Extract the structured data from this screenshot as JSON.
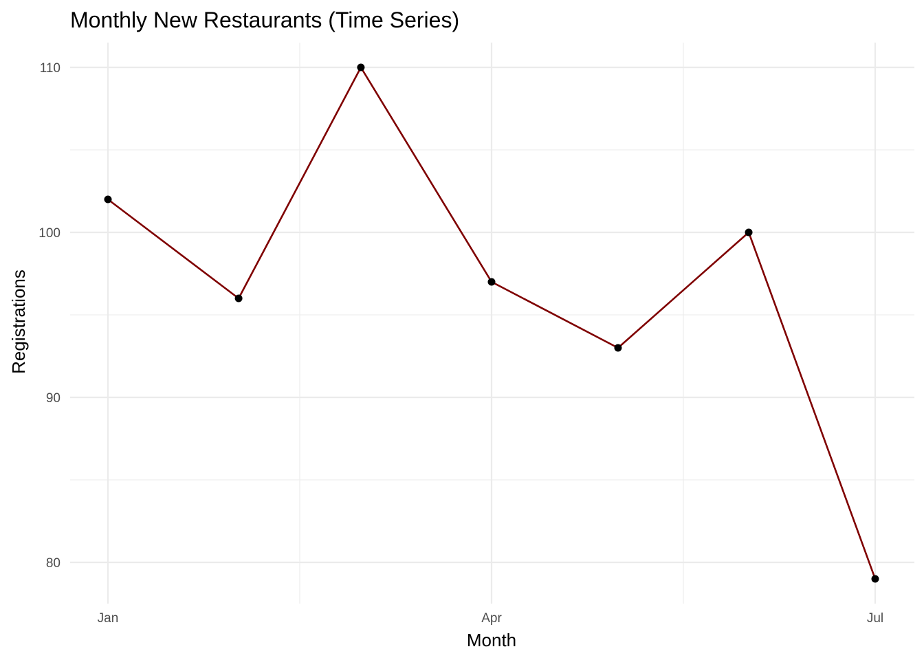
{
  "chart_data": {
    "type": "line",
    "title": "Monthly New Restaurants (Time Series)",
    "xlabel": "Month",
    "ylabel": "Registrations",
    "x": [
      "2024-01",
      "2024-02",
      "2024-03",
      "2024-04",
      "2024-05",
      "2024-06",
      "2024-07"
    ],
    "x_tick_labels": [
      "Jan",
      "Apr",
      "Jul"
    ],
    "x_tick_positions": [
      "2024-01",
      "2024-04",
      "2024-07"
    ],
    "y_ticks": [
      80,
      90,
      100,
      110
    ],
    "ylim": [
      77.5,
      111.5
    ],
    "grid": true,
    "series": [
      {
        "values": [
          102,
          96,
          110,
          97,
          93,
          100,
          79
        ],
        "line_color": "#7f0000",
        "point_color": "#000000"
      }
    ]
  }
}
